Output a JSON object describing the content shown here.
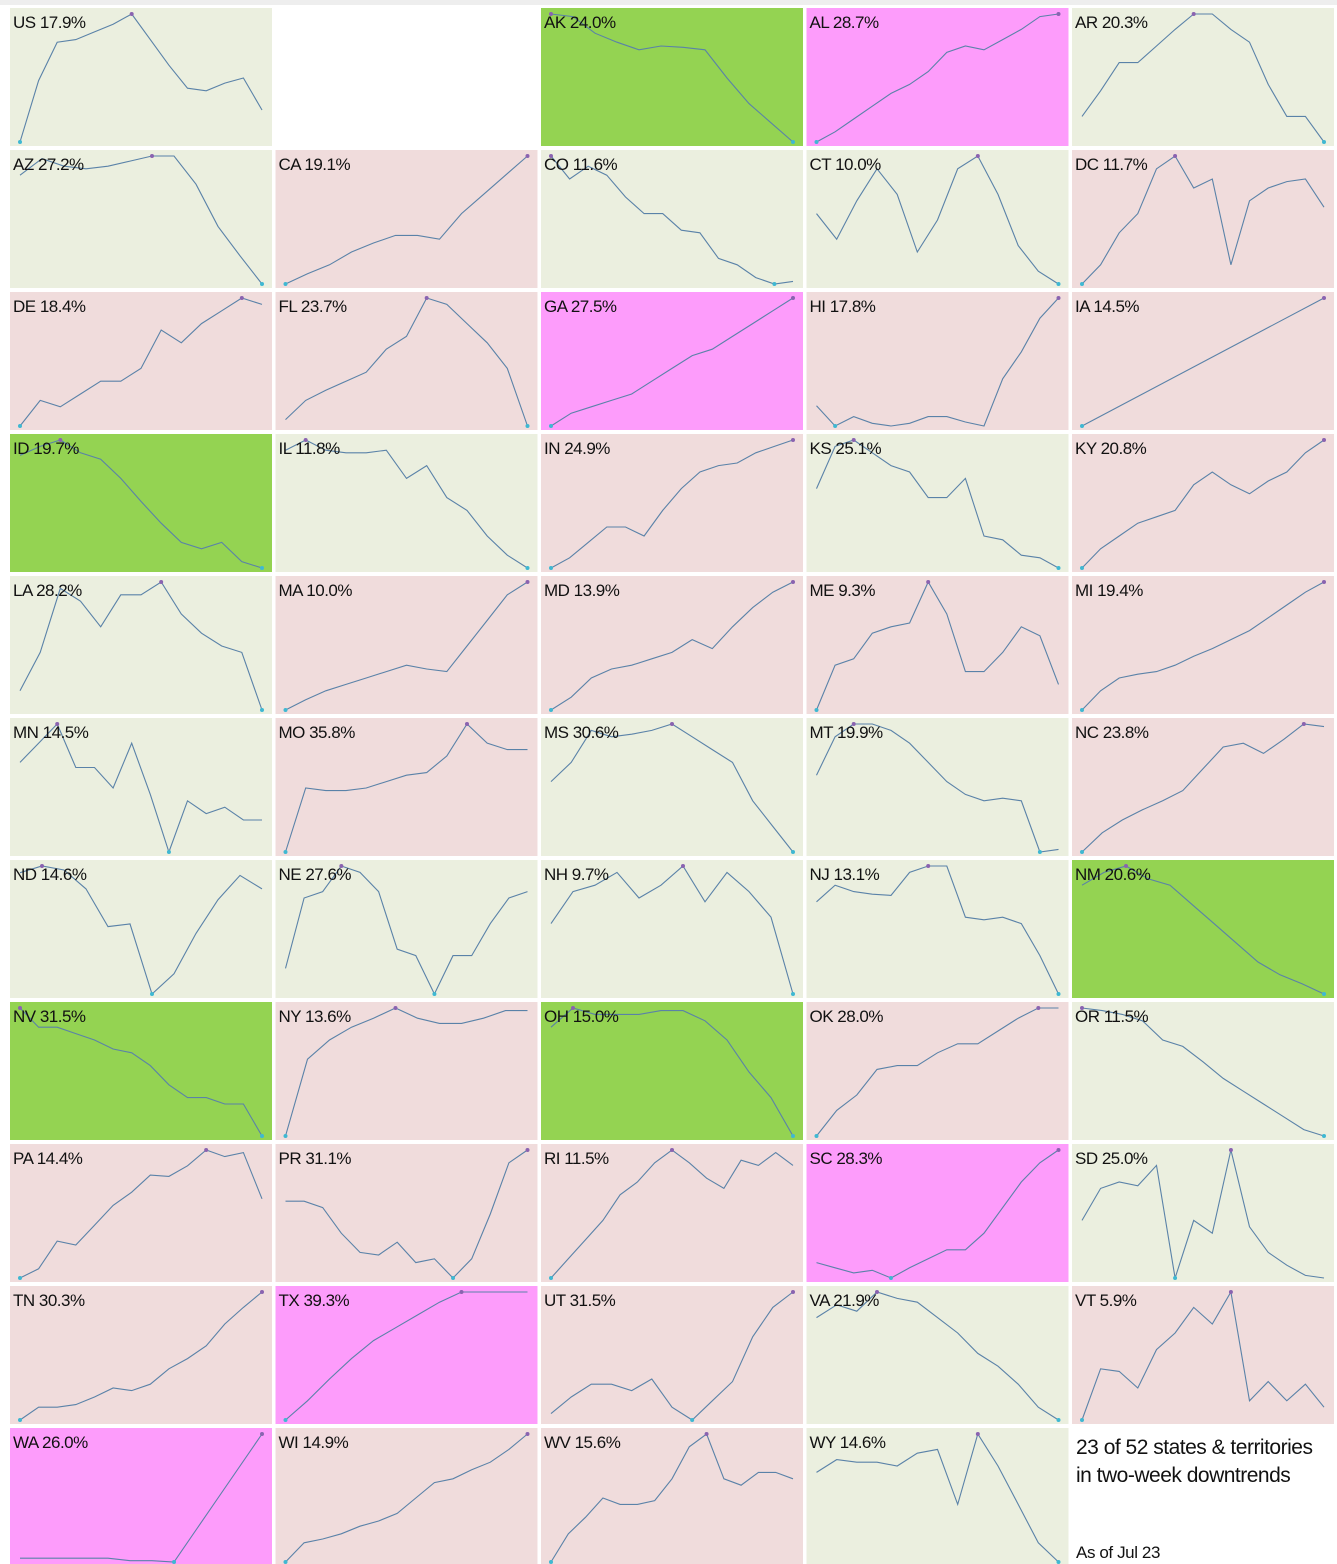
{
  "cells": [
    {
      "label": "US 17.9%",
      "color": "#ebefdf",
      "values": [
        0,
        48,
        78,
        80,
        86,
        92,
        100,
        80,
        60,
        42,
        40,
        46,
        50,
        25
      ]
    },
    {
      "label": "AK 24.0%",
      "color": "#94d352",
      "values": [
        100,
        98,
        85,
        78,
        72,
        75,
        74,
        72,
        50,
        30,
        15,
        0
      ]
    },
    {
      "label": "AL 28.7%",
      "color": "#fd9cfb",
      "values": [
        0,
        8,
        18,
        28,
        38,
        45,
        55,
        70,
        75,
        72,
        80,
        88,
        98,
        100
      ]
    },
    {
      "label": "AR 20.3%",
      "color": "#ebefdf",
      "values": [
        20,
        40,
        62,
        62,
        75,
        88,
        100,
        100,
        88,
        78,
        45,
        20,
        20,
        0
      ]
    },
    {
      "label": "AZ 27.2%",
      "color": "#ebefdf",
      "values": [
        85,
        98,
        92,
        90,
        92,
        96,
        100,
        100,
        78,
        45,
        22,
        0
      ]
    },
    {
      "label": "CA 19.1%",
      "color": "#f0dcdc",
      "values": [
        0,
        8,
        15,
        25,
        32,
        38,
        38,
        35,
        55,
        70,
        85,
        100
      ]
    },
    {
      "label": "CO 11.6%",
      "color": "#ebefdf",
      "values": [
        100,
        82,
        92,
        85,
        68,
        55,
        55,
        42,
        40,
        20,
        15,
        5,
        0,
        2
      ]
    },
    {
      "label": "CT 10.0%",
      "color": "#ebefdf",
      "values": [
        55,
        35,
        65,
        90,
        70,
        25,
        50,
        90,
        100,
        70,
        30,
        10,
        0
      ]
    },
    {
      "label": "DC 11.7%",
      "color": "#f0dcdc",
      "values": [
        0,
        15,
        40,
        55,
        90,
        100,
        75,
        82,
        15,
        65,
        75,
        80,
        82,
        60
      ]
    },
    {
      "label": "DE 18.4%",
      "color": "#f0dcdc",
      "values": [
        0,
        20,
        15,
        25,
        35,
        35,
        45,
        75,
        65,
        80,
        90,
        100,
        95
      ]
    },
    {
      "label": "FL 23.7%",
      "color": "#f0dcdc",
      "values": [
        5,
        20,
        28,
        35,
        42,
        60,
        70,
        100,
        95,
        80,
        65,
        45,
        0
      ]
    },
    {
      "label": "GA 27.5%",
      "color": "#fd9cfb",
      "values": [
        0,
        10,
        15,
        20,
        25,
        35,
        45,
        55,
        60,
        70,
        80,
        90,
        100
      ]
    },
    {
      "label": "HI 17.8%",
      "color": "#f0dcdc",
      "values": [
        20,
        5,
        12,
        7,
        5,
        7,
        12,
        12,
        8,
        5,
        40,
        60,
        85,
        100
      ]
    },
    {
      "label": "IA 14.5%",
      "color": "#f0dcdc",
      "values": [
        0,
        25,
        50,
        75,
        100
      ]
    },
    {
      "label": "ID 19.7%",
      "color": "#94d352",
      "values": [
        88,
        95,
        100,
        90,
        85,
        70,
        52,
        35,
        20,
        15,
        20,
        5,
        0
      ]
    },
    {
      "label": "IL 11.8%",
      "color": "#ebefdf",
      "values": [
        92,
        100,
        92,
        90,
        90,
        92,
        70,
        80,
        55,
        45,
        25,
        10,
        0
      ]
    },
    {
      "label": "IN 24.9%",
      "color": "#f0dcdc",
      "values": [
        0,
        8,
        20,
        32,
        32,
        25,
        45,
        62,
        75,
        80,
        82,
        90,
        95,
        100
      ]
    },
    {
      "label": "KS 25.1%",
      "color": "#ebefdf",
      "values": [
        62,
        95,
        100,
        90,
        80,
        75,
        55,
        55,
        70,
        25,
        22,
        10,
        8,
        0
      ]
    },
    {
      "label": "KY 20.8%",
      "color": "#f0dcdc",
      "values": [
        0,
        15,
        25,
        35,
        40,
        45,
        65,
        75,
        65,
        58,
        68,
        75,
        90,
        100
      ]
    },
    {
      "label": "LA 28.2%",
      "color": "#ebefdf",
      "values": [
        15,
        45,
        95,
        85,
        65,
        90,
        90,
        100,
        75,
        60,
        50,
        45,
        0
      ]
    },
    {
      "label": "MA 10.0%",
      "color": "#f0dcdc",
      "values": [
        0,
        8,
        15,
        20,
        25,
        30,
        35,
        32,
        30,
        50,
        70,
        90,
        100
      ]
    },
    {
      "label": "MD 13.9%",
      "color": "#f0dcdc",
      "values": [
        0,
        10,
        25,
        32,
        35,
        40,
        45,
        55,
        48,
        65,
        80,
        92,
        100
      ]
    },
    {
      "label": "ME 9.3%",
      "color": "#f0dcdc",
      "values": [
        0,
        35,
        40,
        60,
        65,
        68,
        100,
        75,
        30,
        30,
        45,
        65,
        58,
        20
      ]
    },
    {
      "label": "MI 19.4%",
      "color": "#f0dcdc",
      "values": [
        0,
        15,
        25,
        28,
        30,
        35,
        42,
        48,
        55,
        62,
        72,
        82,
        92,
        100
      ]
    },
    {
      "label": "MN 14.5%",
      "color": "#ebefdf",
      "values": [
        70,
        85,
        100,
        66,
        66,
        50,
        85,
        45,
        0,
        40,
        30,
        35,
        25,
        25
      ]
    },
    {
      "label": "MO 35.8%",
      "color": "#f0dcdc",
      "values": [
        0,
        50,
        48,
        48,
        50,
        55,
        60,
        62,
        75,
        100,
        85,
        80,
        80
      ]
    },
    {
      "label": "MS 30.6%",
      "color": "#ebefdf",
      "values": [
        55,
        70,
        95,
        90,
        92,
        95,
        100,
        90,
        80,
        70,
        40,
        20,
        0
      ]
    },
    {
      "label": "MT 19.9%",
      "color": "#ebefdf",
      "values": [
        60,
        90,
        100,
        100,
        95,
        85,
        70,
        55,
        45,
        40,
        42,
        40,
        0,
        2
      ]
    },
    {
      "label": "NC 23.8%",
      "color": "#f0dcdc",
      "values": [
        0,
        15,
        25,
        33,
        40,
        48,
        65,
        82,
        85,
        77,
        88,
        100,
        98
      ]
    },
    {
      "label": "ND 14.6%",
      "color": "#ebefdf",
      "values": [
        90,
        95,
        92,
        78,
        50,
        52,
        0,
        15,
        45,
        70,
        88,
        78
      ]
    },
    {
      "label": "NE 27.6%",
      "color": "#ebefdf",
      "values": [
        20,
        75,
        80,
        100,
        95,
        80,
        35,
        30,
        0,
        30,
        30,
        55,
        75,
        80
      ]
    },
    {
      "label": "NH 9.7%",
      "color": "#ebefdf",
      "values": [
        55,
        80,
        85,
        95,
        75,
        85,
        100,
        72,
        95,
        80,
        60,
        0
      ]
    },
    {
      "label": "NJ 13.1%",
      "color": "#ebefdf",
      "values": [
        72,
        85,
        80,
        78,
        77,
        95,
        100,
        100,
        60,
        58,
        60,
        55,
        30,
        0
      ]
    },
    {
      "label": "NM 20.6%",
      "color": "#94d352",
      "values": [
        85,
        95,
        100,
        90,
        85,
        70,
        55,
        40,
        25,
        15,
        8,
        0
      ]
    },
    {
      "label": "NV 31.5%",
      "color": "#94d352",
      "values": [
        100,
        85,
        85,
        80,
        75,
        68,
        65,
        55,
        40,
        30,
        30,
        25,
        25,
        0
      ]
    },
    {
      "label": "NY 13.6%",
      "color": "#f0dcdc",
      "values": [
        0,
        60,
        75,
        85,
        92,
        100,
        92,
        88,
        88,
        92,
        98,
        98
      ]
    },
    {
      "label": "OH 15.0%",
      "color": "#94d352",
      "values": [
        85,
        100,
        95,
        95,
        95,
        98,
        98,
        90,
        75,
        50,
        30,
        0
      ]
    },
    {
      "label": "OK 28.0%",
      "color": "#f0dcdc",
      "values": [
        0,
        20,
        32,
        52,
        55,
        55,
        65,
        72,
        72,
        82,
        92,
        100,
        100
      ]
    },
    {
      "label": "OR 11.5%",
      "color": "#ebefdf",
      "values": [
        100,
        98,
        95,
        90,
        75,
        70,
        58,
        45,
        35,
        25,
        15,
        5,
        0
      ]
    },
    {
      "label": "PA 14.4%",
      "color": "#f0dcdc",
      "values": [
        0,
        7,
        28,
        25,
        40,
        55,
        65,
        78,
        77,
        85,
        97,
        92,
        95,
        60
      ]
    },
    {
      "label": "PR 31.1%",
      "color": "#f0dcdc",
      "values": [
        60,
        60,
        55,
        35,
        20,
        18,
        28,
        12,
        15,
        0,
        15,
        50,
        90,
        100
      ]
    },
    {
      "label": "RI 11.5%",
      "color": "#f0dcdc",
      "values": [
        0,
        15,
        30,
        45,
        65,
        75,
        90,
        100,
        90,
        78,
        70,
        92,
        88,
        98,
        88
      ]
    },
    {
      "label": "SC 28.3%",
      "color": "#fd9cfb",
      "values": [
        12,
        8,
        4,
        6,
        0,
        8,
        15,
        22,
        22,
        35,
        55,
        75,
        90,
        100
      ]
    },
    {
      "label": "SD 25.0%",
      "color": "#ebefdf",
      "values": [
        45,
        70,
        75,
        72,
        88,
        0,
        45,
        35,
        100,
        40,
        20,
        10,
        2,
        0
      ]
    },
    {
      "label": "TN 30.3%",
      "color": "#f0dcdc",
      "values": [
        0,
        10,
        10,
        12,
        18,
        25,
        23,
        28,
        40,
        48,
        58,
        75,
        88,
        100
      ]
    },
    {
      "label": "TX 39.3%",
      "color": "#fd9cfb",
      "values": [
        0,
        15,
        32,
        48,
        62,
        72,
        82,
        92,
        100,
        100,
        100,
        100
      ]
    },
    {
      "label": "UT 31.5%",
      "color": "#f0dcdc",
      "values": [
        5,
        18,
        28,
        28,
        23,
        32,
        10,
        0,
        15,
        30,
        65,
        88,
        100
      ]
    },
    {
      "label": "VA 21.9%",
      "color": "#ebefdf",
      "values": [
        80,
        90,
        85,
        100,
        95,
        92,
        80,
        68,
        52,
        42,
        28,
        10,
        0
      ]
    },
    {
      "label": "VT 5.9%",
      "color": "#f0dcdc",
      "values": [
        0,
        40,
        38,
        25,
        55,
        68,
        88,
        75,
        100,
        15,
        30,
        15,
        28,
        10
      ]
    },
    {
      "label": "WA 26.0%",
      "color": "#fd9cfb",
      "values": [
        3,
        3,
        3,
        3,
        3,
        1,
        1,
        0,
        25,
        50,
        75,
        100
      ]
    },
    {
      "label": "WI 14.9%",
      "color": "#f0dcdc",
      "values": [
        0,
        15,
        18,
        22,
        28,
        32,
        38,
        50,
        62,
        65,
        72,
        78,
        88,
        100
      ]
    },
    {
      "label": "WV 15.6%",
      "color": "#f0dcdc",
      "values": [
        0,
        22,
        35,
        50,
        45,
        45,
        48,
        65,
        90,
        100,
        65,
        60,
        70,
        70,
        65
      ]
    },
    {
      "label": "WY 14.6%",
      "color": "#ebefdf",
      "values": [
        70,
        80,
        78,
        78,
        75,
        85,
        88,
        45,
        100,
        75,
        45,
        15,
        0
      ]
    }
  ],
  "summary_lines": [
    "23 of 52 states & territories",
    "in two-week downtrends"
  ],
  "date": "As of Jul 23"
}
